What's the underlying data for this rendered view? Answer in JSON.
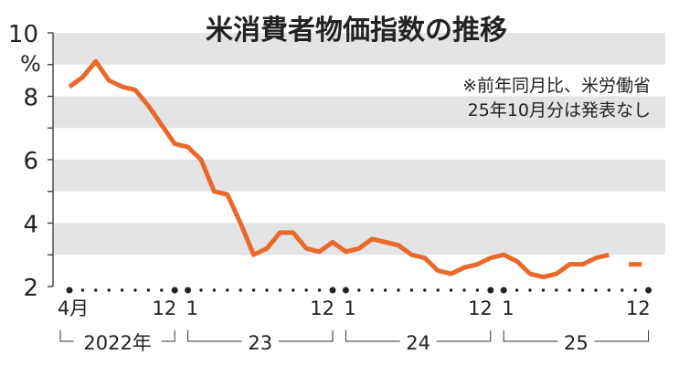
{
  "chart_data": {
    "type": "line",
    "title": "米消費者物価指数の推移",
    "note_lines": [
      "※前年同月比、米労働省",
      "25年10月分は発表なし"
    ],
    "ylabel": "%",
    "ylim": [
      2,
      10
    ],
    "yticks": [
      "2",
      "4",
      "6",
      "8",
      "10"
    ],
    "grid": "alternating horizontal bands",
    "x_start": "2022-04",
    "x_end": "2025-12",
    "month_labels": [
      {
        "month": "2022-04",
        "text": "4月"
      },
      {
        "month": "2022-12",
        "text": "12"
      },
      {
        "month": "2023-01",
        "text": "1"
      },
      {
        "month": "2023-12",
        "text": "12"
      },
      {
        "month": "2024-01",
        "text": "1"
      },
      {
        "month": "2024-12",
        "text": "12"
      },
      {
        "month": "2025-01",
        "text": "1"
      },
      {
        "month": "2025-12",
        "text": "12"
      }
    ],
    "year_labels": [
      {
        "from": "2022-04",
        "to": "2022-12",
        "text": "2022年"
      },
      {
        "from": "2023-01",
        "to": "2023-12",
        "text": "23"
      },
      {
        "from": "2024-01",
        "to": "2024-12",
        "text": "24"
      },
      {
        "from": "2025-01",
        "to": "2025-12",
        "text": "25"
      }
    ],
    "series": [
      {
        "color": "#e8692a",
        "x": [
          "2022-04",
          "2022-05",
          "2022-06",
          "2022-07",
          "2022-08",
          "2022-09",
          "2022-10",
          "2022-11",
          "2022-12",
          "2023-01",
          "2023-02",
          "2023-03",
          "2023-04",
          "2023-05",
          "2023-06",
          "2023-07",
          "2023-08",
          "2023-09",
          "2023-10",
          "2023-11",
          "2023-12",
          "2024-01",
          "2024-02",
          "2024-03",
          "2024-04",
          "2024-05",
          "2024-06",
          "2024-07",
          "2024-08",
          "2024-09",
          "2024-10",
          "2024-11",
          "2024-12",
          "2025-01",
          "2025-02",
          "2025-03",
          "2025-04",
          "2025-05",
          "2025-06",
          "2025-07",
          "2025-08",
          "2025-09",
          "2025-10",
          "2025-11"
        ],
        "values": [
          8.3,
          8.6,
          9.1,
          8.5,
          8.3,
          8.2,
          7.7,
          7.1,
          6.5,
          6.4,
          6.0,
          5.0,
          4.9,
          4.0,
          3.0,
          3.2,
          3.7,
          3.7,
          3.2,
          3.1,
          3.4,
          3.1,
          3.2,
          3.5,
          3.4,
          3.3,
          3.0,
          2.9,
          2.5,
          2.4,
          2.6,
          2.7,
          2.9,
          3.0,
          2.8,
          2.4,
          2.3,
          2.4,
          2.7,
          2.7,
          2.9,
          3.0,
          null,
          2.7
        ]
      }
    ],
    "band_color": "#e3e4e5"
  }
}
